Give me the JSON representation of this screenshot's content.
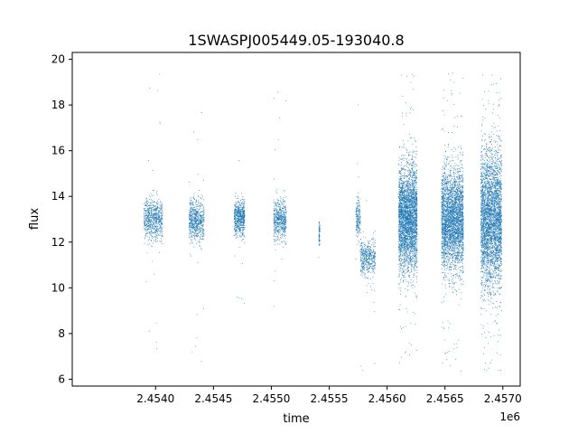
{
  "chart_data": {
    "type": "scatter",
    "title": "1SWASPJ005449.05-193040.8",
    "xlabel": "time",
    "ylabel": "flux",
    "x_offset_label": "1e6",
    "xlim": [
      2.45328,
      2.45715
    ],
    "ylim": [
      5.7,
      20.3
    ],
    "xticks": [
      2.454,
      2.4545,
      2.455,
      2.4555,
      2.456,
      2.4565,
      2.457
    ],
    "xtick_labels": [
      "2.4540",
      "2.4545",
      "2.4550",
      "2.4555",
      "2.4560",
      "2.4565",
      "2.4570"
    ],
    "yticks": [
      6,
      8,
      10,
      12,
      14,
      16,
      18,
      20
    ],
    "ytick_labels": [
      "6",
      "8",
      "10",
      "12",
      "14",
      "16",
      "18",
      "20"
    ],
    "grid": false,
    "marker_color": "#1f77b4",
    "series": [
      {
        "clusters": [
          {
            "x_start": 2.4539,
            "x_end": 2.45406,
            "y_center": 13.0,
            "y_spread": 0.45,
            "n": 700,
            "y_min": 6.5,
            "y_max": 19.4
          },
          {
            "x_start": 2.45429,
            "x_end": 2.45442,
            "y_center": 12.95,
            "y_spread": 0.45,
            "n": 650,
            "y_min": 6.3,
            "y_max": 18.6
          },
          {
            "x_start": 2.45468,
            "x_end": 2.45477,
            "y_center": 13.05,
            "y_spread": 0.4,
            "n": 600,
            "y_min": 9.2,
            "y_max": 16.7
          },
          {
            "x_start": 2.45502,
            "x_end": 2.45513,
            "y_center": 13.0,
            "y_spread": 0.45,
            "n": 550,
            "y_min": 8.7,
            "y_max": 18.7
          },
          {
            "x_start": 2.45541,
            "x_end": 2.45542,
            "y_center": 12.3,
            "y_spread": 0.35,
            "n": 70,
            "y_min": 10.9,
            "y_max": 13.3
          },
          {
            "x_start": 2.45573,
            "x_end": 2.45577,
            "y_center": 13.0,
            "y_spread": 0.45,
            "n": 180,
            "y_min": 7.2,
            "y_max": 18.5
          },
          {
            "x_start": 2.45577,
            "x_end": 2.4559,
            "y_center": 11.3,
            "y_spread": 0.4,
            "n": 450,
            "y_min": 6.3,
            "y_max": 14.2
          },
          {
            "x_start": 2.4561,
            "x_end": 2.45626,
            "y_center": 13.0,
            "y_spread": 1.15,
            "n": 3200,
            "y_min": 6.3,
            "y_max": 19.5
          },
          {
            "x_start": 2.45647,
            "x_end": 2.45666,
            "y_center": 12.95,
            "y_spread": 1.1,
            "n": 3200,
            "y_min": 6.3,
            "y_max": 19.5
          },
          {
            "x_start": 2.45681,
            "x_end": 2.45699,
            "y_center": 13.0,
            "y_spread": 1.45,
            "n": 3500,
            "y_min": 6.3,
            "y_max": 19.5
          }
        ]
      }
    ]
  }
}
